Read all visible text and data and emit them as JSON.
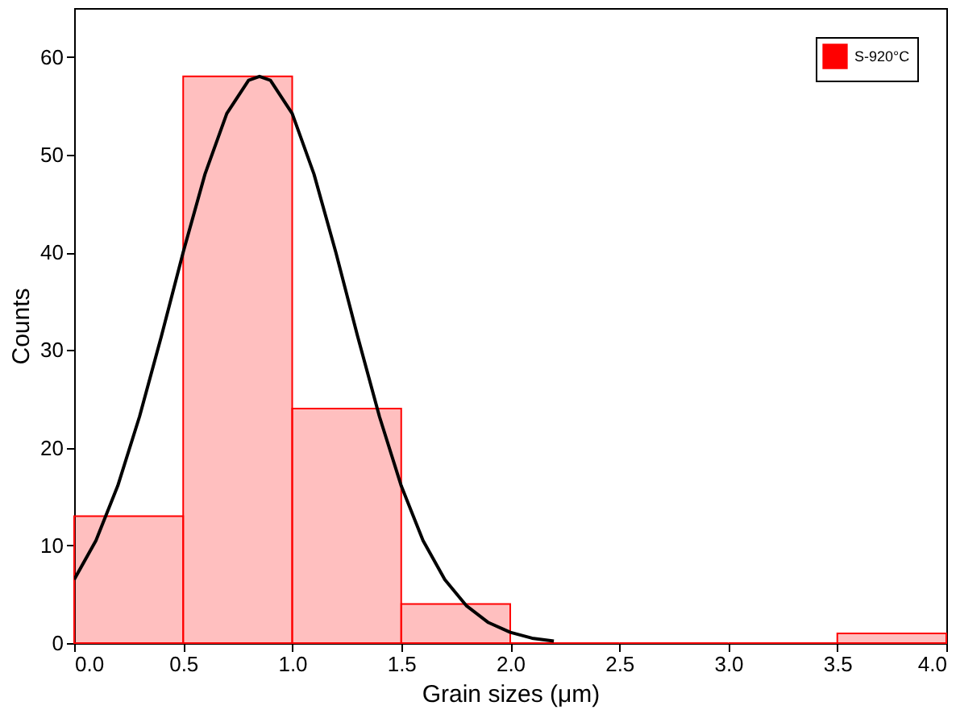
{
  "chart_data": {
    "type": "histogram",
    "xlabel": "Grain sizes (μm)",
    "ylabel": "Counts",
    "bins": [
      0,
      0.5,
      1.0,
      1.5,
      2.0,
      2.5,
      3.0,
      3.5,
      4.0
    ],
    "series": [
      {
        "name": "S-920°C",
        "color": "#ff0000",
        "values": [
          13,
          58,
          24,
          4,
          0,
          0,
          0,
          1
        ]
      },
      {
        "type": "line",
        "color": "#000000",
        "x": [
          0,
          0.1,
          0.2,
          0.3,
          0.4,
          0.5,
          0.6,
          0.7,
          0.8,
          0.85,
          0.9,
          1.0,
          1.1,
          1.2,
          1.3,
          1.4,
          1.5,
          1.6,
          1.7,
          1.8,
          1.9,
          2.0,
          2.1,
          2.2
        ],
        "values": [
          6.5,
          10.5,
          16.1,
          23.2,
          31.4,
          40.0,
          48.0,
          54.2,
          57.6,
          58,
          57.6,
          54.2,
          48.0,
          40.0,
          31.4,
          23.2,
          16.1,
          10.5,
          6.5,
          3.8,
          2.1,
          1.1,
          0.5,
          0.2
        ]
      }
    ],
    "xlim": [
      0,
      4
    ],
    "xticks": [
      {
        "value": 0,
        "label": "0.0"
      },
      {
        "value": 0.5,
        "label": "0.5"
      },
      {
        "value": 1,
        "label": "1.0"
      },
      {
        "value": 1.5,
        "label": "1.5"
      },
      {
        "value": 2,
        "label": "2.0"
      },
      {
        "value": 2.5,
        "label": "2.5"
      },
      {
        "value": 3,
        "label": "3.0"
      },
      {
        "value": 3.5,
        "label": "3.5"
      },
      {
        "value": 4,
        "label": "4.0"
      }
    ],
    "ylim": [
      0,
      65
    ],
    "yticks": [
      0,
      10,
      20,
      30,
      40,
      50,
      60
    ],
    "grid": false,
    "legend": "top right"
  }
}
